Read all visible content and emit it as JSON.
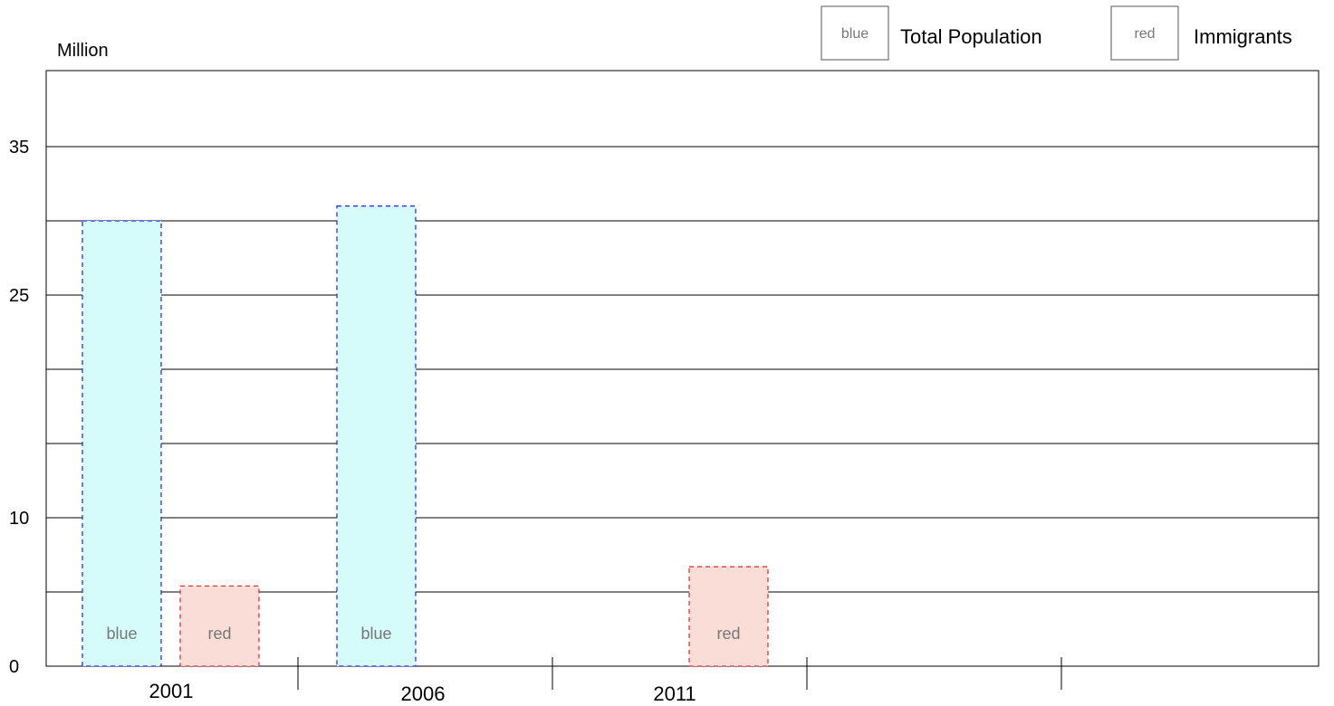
{
  "chart_data": {
    "type": "bar",
    "ylabel": "Million",
    "ylim": [
      0,
      40
    ],
    "y_ticks": [
      0,
      10,
      25,
      35
    ],
    "categories": [
      "2001",
      "2006",
      "2011"
    ],
    "series": [
      {
        "name": "Total Population",
        "color_name": "blue",
        "fill": "#d5fbfa",
        "stroke": "#1f20e8",
        "values": [
          30,
          31,
          null
        ]
      },
      {
        "name": "Immigrants",
        "color_name": "red",
        "fill": "#f9ddd6",
        "stroke": "#e8231f",
        "values": [
          5.4,
          null,
          6.7
        ]
      }
    ],
    "legend": {
      "position": "top-right",
      "items": [
        {
          "swatch_text": "blue",
          "label": "Total Population"
        },
        {
          "swatch_text": "red",
          "label": "Immigrants"
        }
      ]
    },
    "grid": true
  }
}
